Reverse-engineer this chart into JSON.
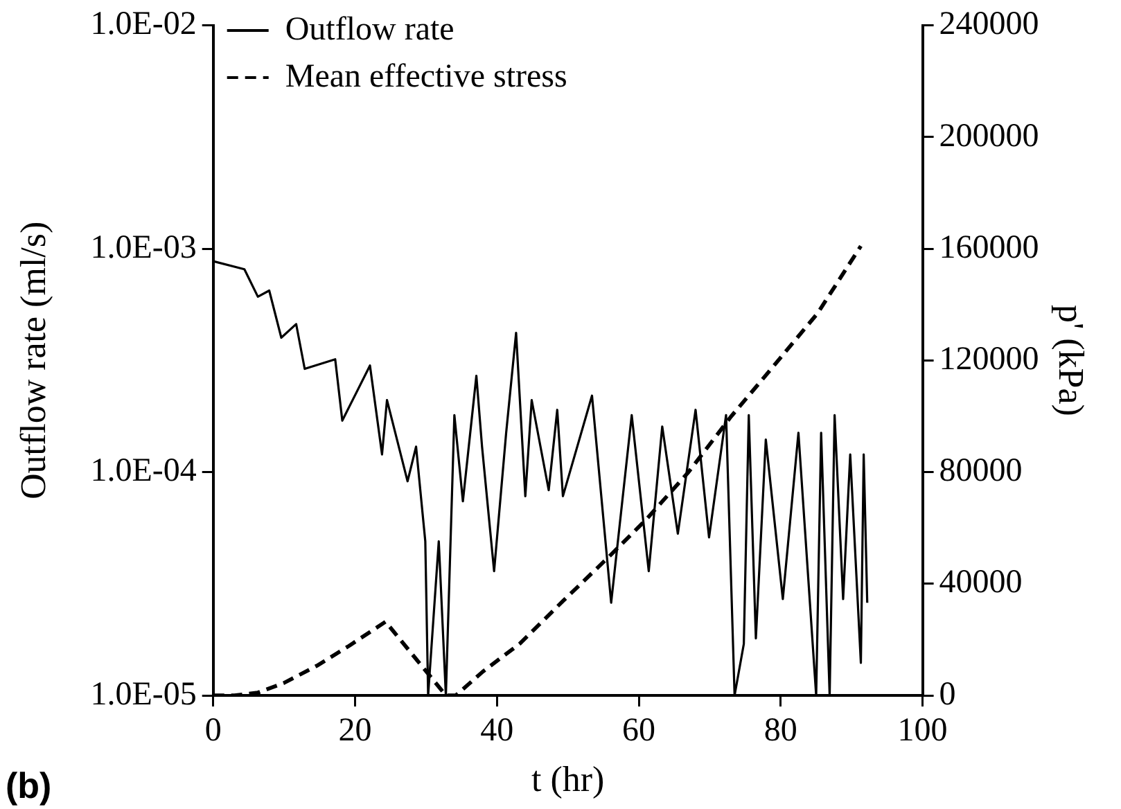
{
  "chart_data": {
    "type": "line",
    "xlabel": "t (hr)",
    "ylabel": "Outflow rate (ml/s)",
    "y2label": "p' (kPa)",
    "annotations": [
      "(b)"
    ],
    "log": "y",
    "grid": false,
    "legend": "top left",
    "marker": "none",
    "xlim": [
      0,
      100
    ],
    "xticks": [
      0,
      20,
      40,
      60,
      80,
      100
    ],
    "ylim": [
      1e-05,
      0.01
    ],
    "yticks": [
      {
        "value": 1e-05,
        "label": "1.0E-05"
      },
      {
        "value": 0.0001,
        "label": "1.0E-04"
      },
      {
        "value": 0.001,
        "label": "1.0E-03"
      },
      {
        "value": 0.01,
        "label": "1.0E-02"
      }
    ],
    "y2lim": [
      0,
      240000
    ],
    "y2ticks": [
      0,
      40000,
      80000,
      120000,
      160000,
      200000,
      240000
    ],
    "series": [
      {
        "name": "Outflow rate",
        "color": "#000000",
        "line_style": "solid",
        "x": [
          0,
          4.4,
          6.3,
          7.9,
          9.6,
          11.7,
          12.9,
          17.2,
          18.2,
          22.1,
          23.8,
          24.5,
          27.4,
          28.6,
          29.9,
          30.3,
          31.8,
          32.8,
          34,
          35.2,
          37.1,
          37.9,
          39.6,
          41.3,
          42.7,
          44,
          44.9,
          47.3,
          48.5,
          49.3,
          53.4,
          56.1,
          59,
          61.4,
          63.3,
          65.5,
          68,
          69.9,
          72.3,
          73.5,
          74.8,
          75.5,
          76.5,
          77.9,
          80.3,
          82.5,
          85,
          85.7,
          86.9,
          87.6,
          88.8,
          89.8,
          91.3,
          91.7,
          92.2
        ],
        "values": [
          0.00088,
          0.00081,
          0.00061,
          0.00065,
          0.0004,
          0.00046,
          0.00029,
          0.00032,
          0.00017,
          0.0003,
          0.00012,
          0.00021,
          9.1e-05,
          0.00013,
          4.9e-05,
          1e-05,
          4.9e-05,
          1e-05,
          0.00018,
          7.4e-05,
          0.00027,
          0.00013,
          3.6e-05,
          0.00015,
          0.00042,
          7.8e-05,
          0.00021,
          8.3e-05,
          0.00019,
          7.8e-05,
          0.00022,
          2.6e-05,
          0.00018,
          3.6e-05,
          0.00016,
          5.3e-05,
          0.00019,
          5.1e-05,
          0.00018,
          1e-05,
          1.7e-05,
          0.00018,
          1.8e-05,
          0.00014,
          2.7e-05,
          0.00015,
          1e-05,
          0.00015,
          1e-05,
          0.00018,
          2.7e-05,
          0.00012,
          1.4e-05,
          0.00012,
          2.6e-05
        ]
      },
      {
        "name": "Mean effective stress",
        "color": "#000000",
        "line_style": "dashed",
        "axis": "y2",
        "x": [
          0,
          3,
          6.3,
          10,
          14.6,
          19,
          24.3,
          29.9,
          32.8,
          34.2,
          38,
          43.2,
          49.3,
          55.8,
          61,
          67,
          73,
          79,
          85.2,
          91.3
        ],
        "values": [
          0,
          0,
          1000,
          4500,
          10600,
          17500,
          26400,
          9000,
          0,
          0,
          8500,
          18500,
          33800,
          49700,
          62900,
          80000,
          99900,
          118000,
          136900,
          161000
        ]
      }
    ]
  }
}
